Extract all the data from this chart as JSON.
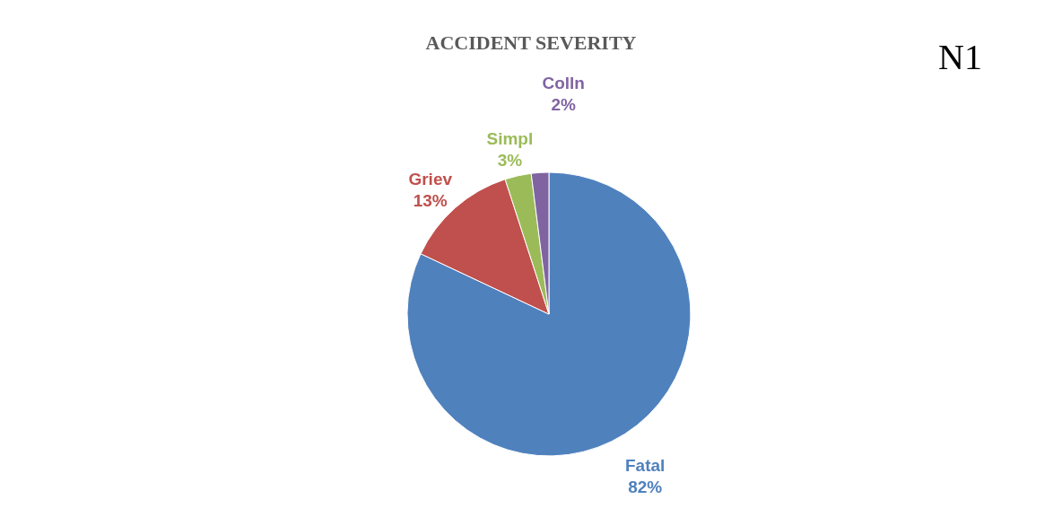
{
  "chart_data": {
    "type": "pie",
    "title": "ACCIDENT SEVERITY",
    "annotations": [
      "N1"
    ],
    "categories": [
      "Fatal",
      "Griev",
      "Simpl",
      "Colln"
    ],
    "values": [
      82,
      13,
      3,
      2
    ],
    "value_labels": [
      "82%",
      "13%",
      "3%",
      "2%"
    ],
    "colors": [
      "#4f81bd",
      "#c0504d",
      "#9bbb59",
      "#8064a2"
    ],
    "legend": false
  }
}
